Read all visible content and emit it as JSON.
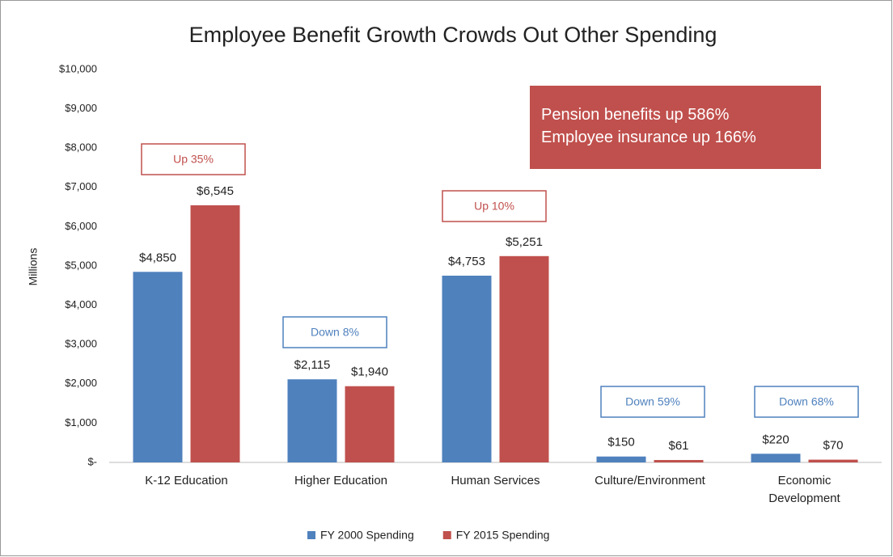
{
  "chart_data": {
    "type": "bar",
    "title": "Employee Benefit Growth Crowds Out Other Spending",
    "y_label": "Millions",
    "categories": [
      "K-12 Education",
      "Higher Education",
      "Human Services",
      "Culture/Environment",
      "Economic\nDevelopment"
    ],
    "series": [
      {
        "name": "FY 2000 Spending",
        "color": "#4f81bd",
        "values": [
          4850,
          2115,
          4753,
          150,
          220
        ],
        "value_labels": [
          "$4,850",
          "$2,115",
          "$4,753",
          "$150",
          "$220"
        ]
      },
      {
        "name": "FY 2015 Spending",
        "color": "#c0504d",
        "values": [
          6545,
          1940,
          5251,
          61,
          70
        ],
        "value_labels": [
          "$6,545",
          "$1,940",
          "$5,251",
          "$61",
          "$70"
        ]
      }
    ],
    "ylim": [
      0,
      10000
    ],
    "yticks": [
      {
        "value": 0,
        "label": "$-"
      },
      {
        "value": 1000,
        "label": "$1,000"
      },
      {
        "value": 2000,
        "label": "$2,000"
      },
      {
        "value": 3000,
        "label": "$3,000"
      },
      {
        "value": 4000,
        "label": "$4,000"
      },
      {
        "value": 5000,
        "label": "$5,000"
      },
      {
        "value": 6000,
        "label": "$6,000"
      },
      {
        "value": 7000,
        "label": "$7,000"
      },
      {
        "value": 8000,
        "label": "$8,000"
      },
      {
        "value": 9000,
        "label": "$9,000"
      },
      {
        "value": 10000,
        "label": "$10,000"
      }
    ],
    "grid": false,
    "legend": "bottom",
    "annotations": [
      {
        "text": "Up 35%",
        "color": "#c0504d"
      },
      {
        "text": "Down 8%",
        "color": "#4f81bd"
      },
      {
        "text": "Up 10%",
        "color": "#c0504d"
      },
      {
        "text": "Down 59%",
        "color": "#4f81bd"
      },
      {
        "text": "Down 68%",
        "color": "#4f81bd"
      }
    ],
    "callout": [
      "Pension benefits up 586%",
      "Employee insurance up 166%"
    ]
  }
}
